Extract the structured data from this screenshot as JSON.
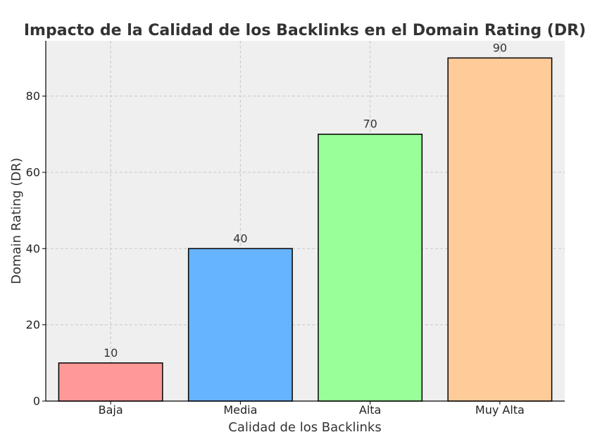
{
  "chart_data": {
    "type": "bar",
    "title": "Impacto de la Calidad de los Backlinks en el Domain Rating (DR)",
    "xlabel": "Calidad de los Backlinks",
    "ylabel": "Domain Rating (DR)",
    "categories": [
      "Baja",
      "Media",
      "Alta",
      "Muy Alta"
    ],
    "values": [
      10,
      40,
      70,
      90
    ],
    "data_labels": [
      "10",
      "40",
      "70",
      "90"
    ],
    "colors": [
      "#ff9999",
      "#66b3ff",
      "#99ff99",
      "#ffcc99"
    ],
    "ylim": [
      0,
      94.5
    ],
    "yticks": [
      0,
      20,
      40,
      60,
      80
    ],
    "ytick_labels": [
      "0",
      "20",
      "40",
      "60",
      "80"
    ],
    "grid": true,
    "background": "#efefef",
    "grid_color": "#c8c8c8",
    "edge_color": "#000000"
  }
}
